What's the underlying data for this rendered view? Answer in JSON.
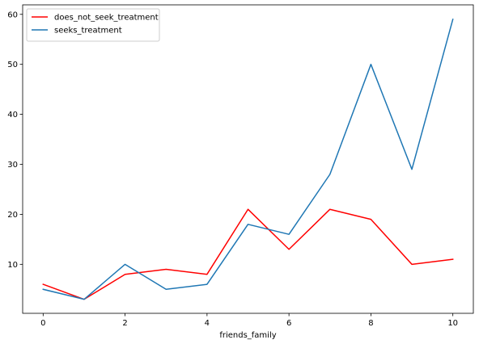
{
  "chart_data": {
    "type": "line",
    "title": "",
    "xlabel": "friends_family",
    "ylabel": "",
    "x": [
      0,
      1,
      2,
      3,
      4,
      5,
      6,
      7,
      8,
      9,
      10
    ],
    "xlim": [
      -0.5,
      10.5
    ],
    "ylim": [
      0.2,
      61.9
    ],
    "xticks": [
      0,
      2,
      4,
      6,
      8,
      10
    ],
    "yticks": [
      10,
      20,
      30,
      40,
      50,
      60
    ],
    "grid": false,
    "legend_position": "top-left",
    "series": [
      {
        "name": "does_not_seek_treatment",
        "color": "#ff0000",
        "values": [
          6,
          3,
          8,
          9,
          8,
          21,
          13,
          21,
          19,
          10,
          11
        ]
      },
      {
        "name": "seeks_treatment",
        "color": "#1f77b4",
        "values": [
          5,
          3,
          10,
          5,
          6,
          18,
          16,
          28,
          50,
          29,
          59
        ]
      }
    ]
  }
}
